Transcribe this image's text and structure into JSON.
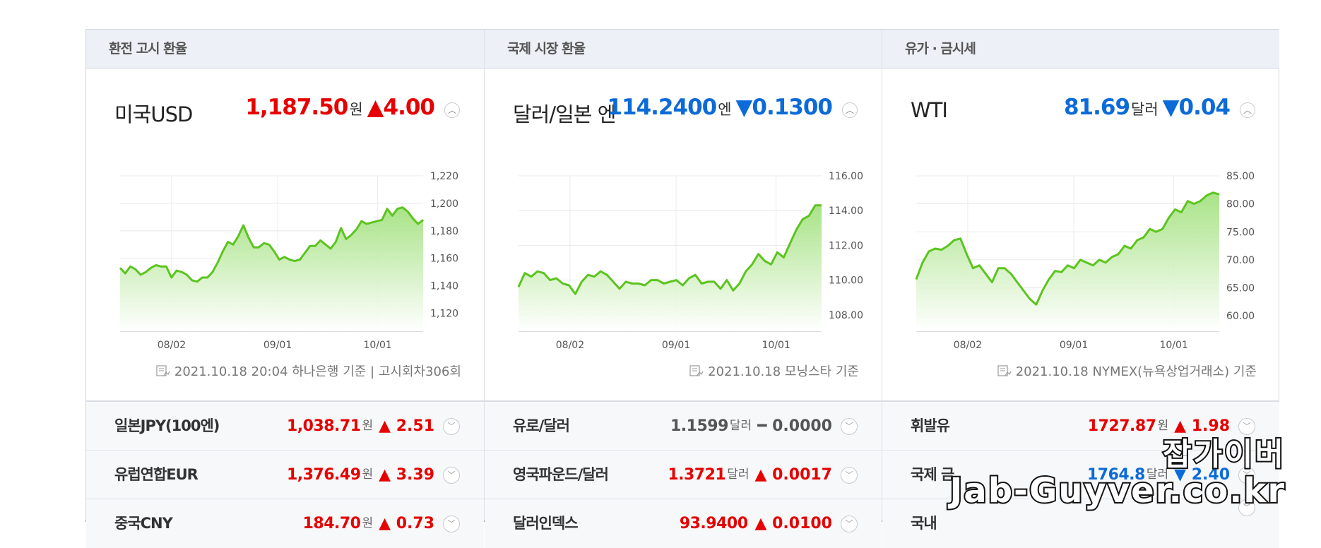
{
  "columns": [
    {
      "header": "환전 고시 환율",
      "main": {
        "title": "미국USD",
        "value": "1,187.50",
        "unit": "원",
        "change": "▲4.00",
        "direction": "up",
        "toggle_icon": "chevron-up-icon"
      },
      "source": "2021.10.18 20:04 하나은행 기준 | 고시회차306회",
      "source_icon": "chart-doc-icon",
      "chart_data": {
        "type": "area",
        "title": "",
        "x_tick_labels": [
          "08/02",
          "09/01",
          "10/01"
        ],
        "y_tick_labels": [
          "1,220",
          "1,200",
          "1,180",
          "1,160",
          "1,140",
          "1,120"
        ],
        "ylim": [
          1110,
          1220
        ],
        "grid": true,
        "color": "#5cc41f",
        "values": [
          1153,
          1149,
          1154,
          1152,
          1148,
          1150,
          1153,
          1155,
          1154,
          1154,
          1146,
          1151,
          1150,
          1148,
          1144,
          1143,
          1146,
          1146,
          1150,
          1157,
          1165,
          1172,
          1170,
          1176,
          1184,
          1175,
          1168,
          1168,
          1171,
          1170,
          1165,
          1159,
          1161,
          1159,
          1158,
          1159,
          1164,
          1169,
          1169,
          1173,
          1170,
          1167,
          1172,
          1182,
          1174,
          1177,
          1181,
          1187,
          1185,
          1186,
          1187,
          1188,
          1196,
          1191,
          1196,
          1197,
          1194,
          1189,
          1185,
          1188
        ]
      },
      "rows": [
        {
          "name": "일본JPY(100엔)",
          "value": "1,038.71",
          "unit": "원",
          "change": "▲ 2.51",
          "direction": "up"
        },
        {
          "name": "유럽연합EUR",
          "value": "1,376.49",
          "unit": "원",
          "change": "▲ 3.39",
          "direction": "up"
        },
        {
          "name": "중국CNY",
          "value": "184.70",
          "unit": "원",
          "change": "▲ 0.73",
          "direction": "up"
        }
      ]
    },
    {
      "header": "국제 시장 환율",
      "main": {
        "title": "달러/일본 엔",
        "value": "114.2400",
        "unit": "엔",
        "change": "▼0.1300",
        "direction": "down",
        "toggle_icon": "chevron-up-icon"
      },
      "source": "2021.10.18 모닝스타 기준",
      "source_icon": "chart-doc-icon",
      "chart_data": {
        "type": "area",
        "title": "",
        "x_tick_labels": [
          "08/02",
          "09/01",
          "10/01"
        ],
        "y_tick_labels": [
          "116.00",
          "114.00",
          "112.00",
          "110.00",
          "108.00"
        ],
        "ylim": [
          107.3,
          116.0
        ],
        "grid": true,
        "color": "#5cc41f",
        "values": [
          109.6,
          110.4,
          110.2,
          110.5,
          110.4,
          110.0,
          110.1,
          109.8,
          109.7,
          109.2,
          109.9,
          110.3,
          110.2,
          110.5,
          110.3,
          109.9,
          109.5,
          109.9,
          109.8,
          109.8,
          109.7,
          110.0,
          110.0,
          109.8,
          109.9,
          110.0,
          109.7,
          110.1,
          110.3,
          109.8,
          109.9,
          109.9,
          109.5,
          110.0,
          109.4,
          109.8,
          110.5,
          110.9,
          111.5,
          111.1,
          110.9,
          111.6,
          111.3,
          112.1,
          112.9,
          113.5,
          113.7,
          114.3,
          114.3
        ]
      },
      "rows": [
        {
          "name": "유로/달러",
          "value": "1.1599",
          "unit": "달러",
          "change": "━ 0.0000",
          "direction": "same"
        },
        {
          "name": "영국파운드/달러",
          "value": "1.3721",
          "unit": "달러",
          "change": "▲ 0.0017",
          "direction": "up"
        },
        {
          "name": "달러인덱스",
          "value": "93.9400",
          "unit": "",
          "change": "▲ 0.0100",
          "direction": "up"
        }
      ]
    },
    {
      "header": "유가 · 금시세",
      "main": {
        "title": "WTI",
        "value": "81.69",
        "unit": "달러",
        "change": "▼0.04",
        "direction": "down",
        "toggle_icon": "chevron-up-icon"
      },
      "source": "2021.10.18 NYMEX(뉴욕상업거래소) 기준",
      "source_icon": "chart-doc-icon",
      "chart_data": {
        "type": "area",
        "title": "",
        "x_tick_labels": [
          "08/02",
          "09/01",
          "10/01"
        ],
        "y_tick_labels": [
          "85.00",
          "80.00",
          "75.00",
          "70.00",
          "65.00",
          "60.00"
        ],
        "ylim": [
          58.0,
          85.0
        ],
        "grid": true,
        "color": "#5cc41f",
        "values": [
          66.5,
          69.5,
          71.5,
          72.0,
          71.8,
          72.5,
          73.5,
          73.8,
          71.0,
          68.5,
          69.0,
          67.5,
          66.0,
          68.5,
          68.5,
          67.5,
          66.0,
          64.5,
          63.0,
          62.0,
          64.5,
          66.5,
          68.0,
          67.8,
          69.0,
          68.5,
          70.0,
          69.5,
          69.0,
          70.0,
          69.5,
          70.5,
          71.0,
          72.5,
          72.0,
          73.5,
          74.0,
          75.5,
          75.0,
          75.5,
          77.5,
          79.0,
          78.5,
          80.5,
          80.0,
          80.5,
          81.5,
          82.0,
          81.7
        ]
      },
      "rows": [
        {
          "name": "휘발유",
          "value": "1727.87",
          "unit": "원",
          "change": "▲ 1.98",
          "direction": "up"
        },
        {
          "name": "국제 금",
          "value": "1764.8",
          "unit": "달러",
          "change": "▼ 2.40",
          "direction": "down"
        },
        {
          "name": "국내",
          "value": "",
          "unit": "",
          "change": "",
          "direction": "down"
        }
      ]
    }
  ],
  "watermark": {
    "line1": "잡가이버",
    "line2": "Jab-Guyver.co.kr"
  }
}
